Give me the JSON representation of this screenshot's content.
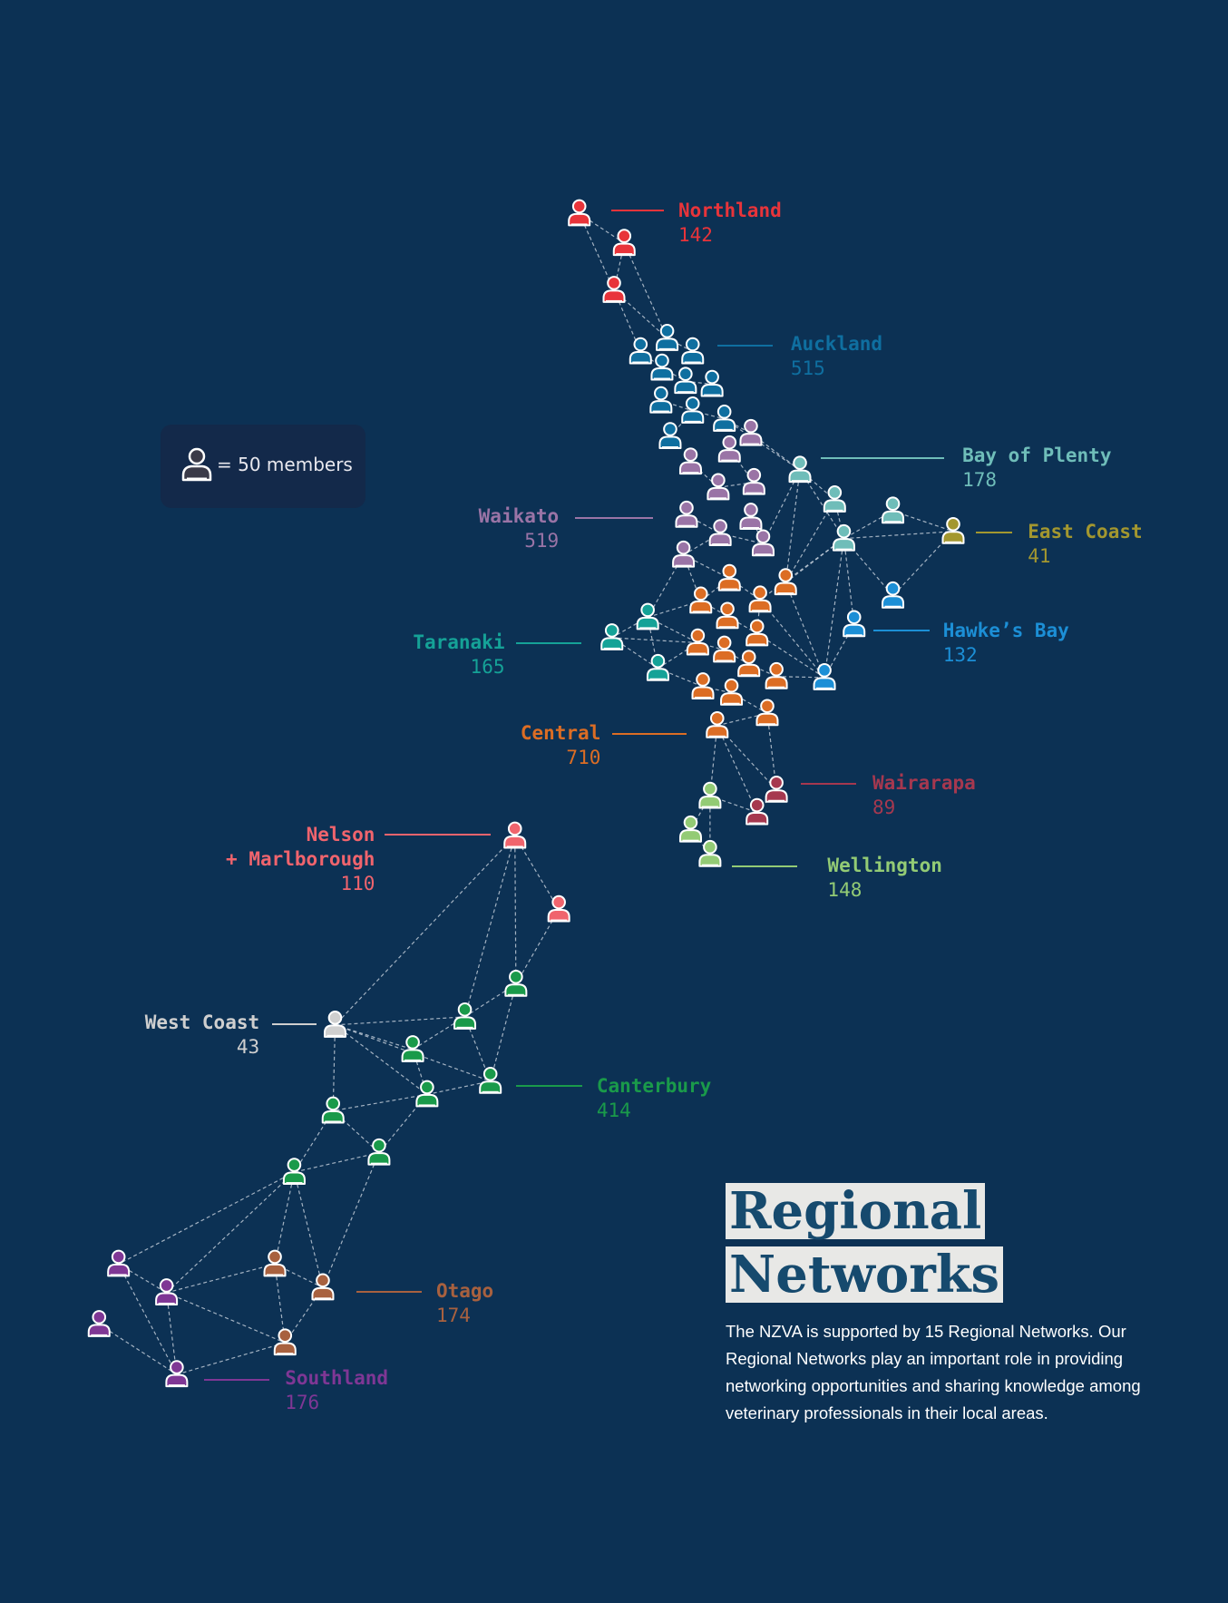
{
  "legend": {
    "icon": "person-icon",
    "text": "= 50 members"
  },
  "title": {
    "line1": "Regional",
    "line2": "Networks"
  },
  "description": "The NZVA is supported by 15 Regional Networks. Our Regional Networks play an important role in providing networking opportunities and sharing knowledge among veterinary professionals in their local areas.",
  "colors": {
    "background": "#0c3154",
    "Northland": "#e8343a",
    "Auckland": "#0f6fa0",
    "Bay of Plenty": "#6fbdb9",
    "East Coast": "#a3972f",
    "Waikato": "#9a74a6",
    "Taranaki": "#15a297",
    "Hawke's Bay": "#1c8fd6",
    "Central": "#dc6d24",
    "Wairarapa": "#a6384f",
    "Wellington": "#93cb75",
    "Nelson + Marlborough": "#f0646d",
    "West Coast": "#cfcfcf",
    "Canterbury": "#1a9a4a",
    "Otago": "#a8613f",
    "Southland": "#7f3795"
  },
  "chart_data": {
    "type": "network",
    "unit": "= 50 members",
    "regions": [
      {
        "name": "Northland",
        "label_lines": [
          "Northland"
        ],
        "members": "142"
      },
      {
        "name": "Auckland",
        "label_lines": [
          "Auckland"
        ],
        "members": "515"
      },
      {
        "name": "Bay of Plenty",
        "label_lines": [
          "Bay of Plenty"
        ],
        "members": "178"
      },
      {
        "name": "East Coast",
        "label_lines": [
          "East Coast"
        ],
        "members": "41"
      },
      {
        "name": "Waikato",
        "label_lines": [
          "Waikato"
        ],
        "members": "519"
      },
      {
        "name": "Taranaki",
        "label_lines": [
          "Taranaki"
        ],
        "members": "165"
      },
      {
        "name": "Hawke's Bay",
        "label_lines": [
          "Hawke’s Bay"
        ],
        "members": "132"
      },
      {
        "name": "Central",
        "label_lines": [
          "Central"
        ],
        "members": "710"
      },
      {
        "name": "Wairarapa",
        "label_lines": [
          "Wairarapa"
        ],
        "members": "89"
      },
      {
        "name": "Wellington",
        "label_lines": [
          "Wellington"
        ],
        "members": "148"
      },
      {
        "name": "Nelson + Marlborough",
        "label_lines": [
          "Nelson",
          "+ Marlborough"
        ],
        "members": "110"
      },
      {
        "name": "West Coast",
        "label_lines": [
          "West Coast"
        ],
        "members": "43"
      },
      {
        "name": "Canterbury",
        "label_lines": [
          "Canterbury"
        ],
        "members": "414"
      },
      {
        "name": "Otago",
        "label_lines": [
          "Otago"
        ],
        "members": "174"
      },
      {
        "name": "Southland",
        "label_lines": [
          "Southland"
        ],
        "members": "176"
      }
    ]
  }
}
